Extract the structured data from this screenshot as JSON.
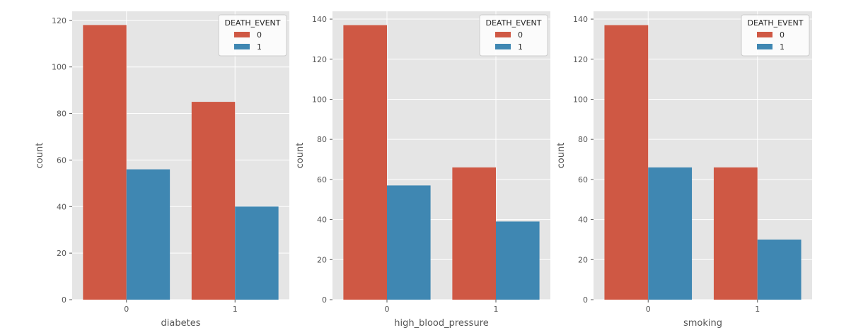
{
  "colors": {
    "panel_bg": "#e5e5e5",
    "grid": "#ffffff",
    "tick": "#555555",
    "series_0": "#cf5844",
    "series_1": "#3f87b2"
  },
  "chart_data": [
    {
      "type": "bar",
      "xlabel": "diabetes",
      "ylabel": "count",
      "categories": [
        "0",
        "1"
      ],
      "yticks": [
        0,
        20,
        40,
        60,
        80,
        100,
        120
      ],
      "ylim": [
        0,
        123.9
      ],
      "grid": true,
      "legend": {
        "title": "DEATH_EVENT",
        "position": "top-right",
        "entries": [
          "0",
          "1"
        ]
      },
      "series": [
        {
          "name": "0",
          "values": [
            118,
            85
          ]
        },
        {
          "name": "1",
          "values": [
            56,
            40
          ]
        }
      ]
    },
    {
      "type": "bar",
      "xlabel": "high_blood_pressure",
      "ylabel": "count",
      "categories": [
        "0",
        "1"
      ],
      "yticks": [
        0,
        20,
        40,
        60,
        80,
        100,
        120,
        140
      ],
      "ylim": [
        0,
        143.9
      ],
      "grid": true,
      "legend": {
        "title": "DEATH_EVENT",
        "position": "top-right",
        "entries": [
          "0",
          "1"
        ]
      },
      "series": [
        {
          "name": "0",
          "values": [
            137,
            66
          ]
        },
        {
          "name": "1",
          "values": [
            57,
            39
          ]
        }
      ]
    },
    {
      "type": "bar",
      "xlabel": "smoking",
      "ylabel": "count",
      "categories": [
        "0",
        "1"
      ],
      "yticks": [
        0,
        20,
        40,
        60,
        80,
        100,
        120,
        140
      ],
      "ylim": [
        0,
        143.9
      ],
      "grid": true,
      "legend": {
        "title": "DEATH_EVENT",
        "position": "top-right",
        "entries": [
          "0",
          "1"
        ]
      },
      "series": [
        {
          "name": "0",
          "values": [
            137,
            66
          ]
        },
        {
          "name": "1",
          "values": [
            66,
            30
          ]
        }
      ]
    }
  ]
}
